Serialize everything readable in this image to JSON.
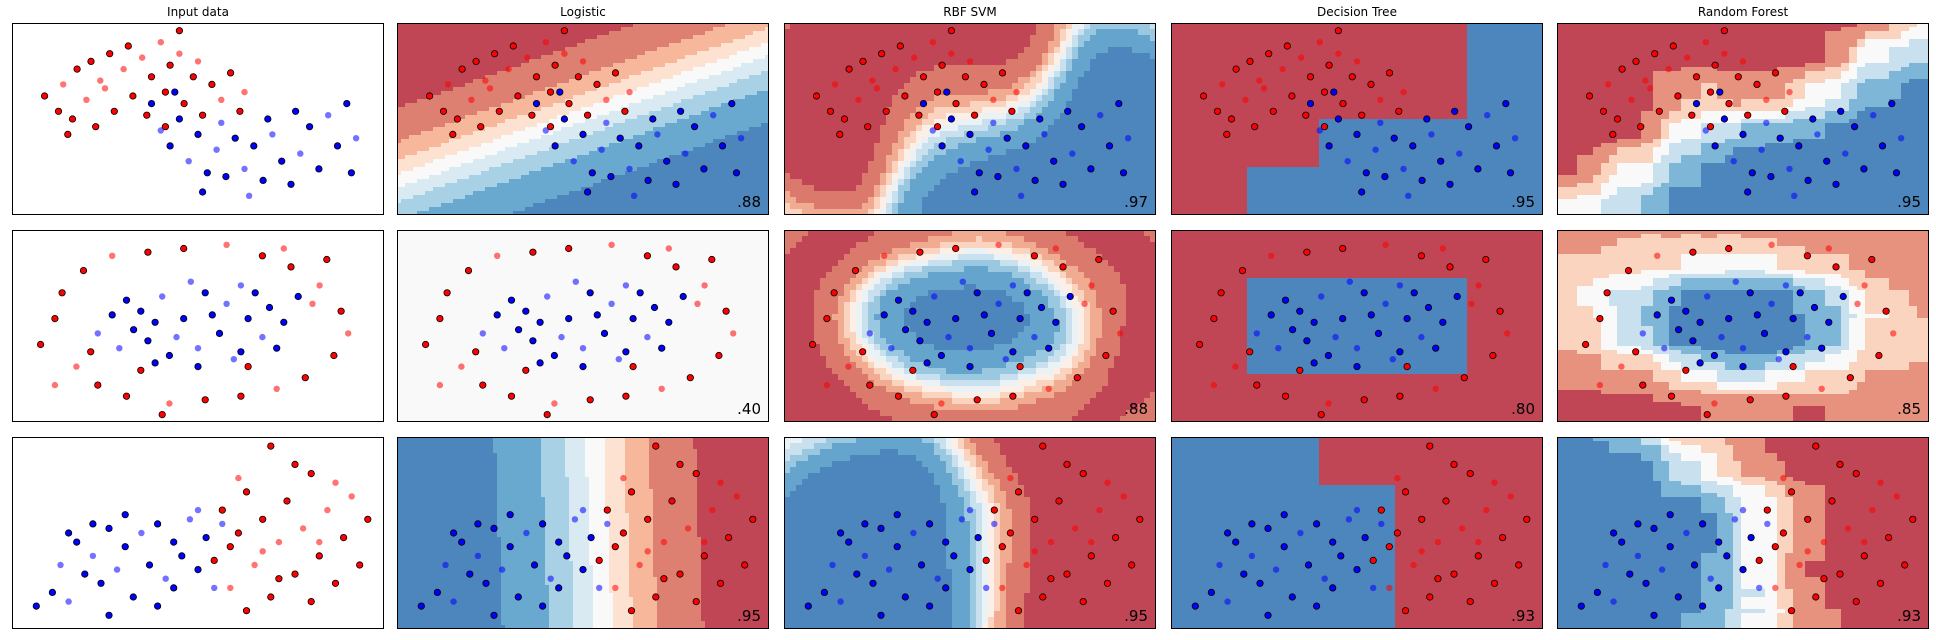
{
  "chart_data": {
    "type": "scatter",
    "columns": [
      "Input data",
      "Logistic",
      "RBF SVM",
      "Decision Tree",
      "Random Forest"
    ],
    "rows": [
      {
        "dataset": "moons",
        "xlim": [
          -1.5,
          2.5
        ],
        "ylim": [
          -1.0,
          1.5
        ],
        "scores": [
          "",
          ".88",
          ".97",
          ".95",
          ".95"
        ],
        "points": [
          [
            -1.15,
            0.55,
            0
          ],
          [
            -1.0,
            0.35,
            0
          ],
          [
            -0.95,
            0.7,
            0
          ],
          [
            -0.85,
            0.25,
            0
          ],
          [
            -0.8,
            0.9,
            0
          ],
          [
            -0.7,
            0.5,
            0
          ],
          [
            -0.65,
            1.0,
            0
          ],
          [
            -0.6,
            0.15,
            0
          ],
          [
            -0.5,
            0.65,
            0
          ],
          [
            -0.45,
            1.1,
            0
          ],
          [
            -0.4,
            0.35,
            0
          ],
          [
            -0.3,
            0.9,
            0
          ],
          [
            -0.25,
            1.2,
            0
          ],
          [
            -0.2,
            0.55,
            0
          ],
          [
            -0.1,
            1.05,
            0
          ],
          [
            -0.05,
            0.3,
            0
          ],
          [
            0.0,
            0.8,
            0
          ],
          [
            0.1,
            1.25,
            0
          ],
          [
            0.15,
            0.6,
            0
          ],
          [
            0.2,
            0.95,
            0
          ],
          [
            0.3,
            1.1,
            0
          ],
          [
            0.35,
            0.45,
            0
          ],
          [
            0.45,
            0.8,
            0
          ],
          [
            0.5,
            1.0,
            0
          ],
          [
            0.55,
            0.3,
            0
          ],
          [
            0.65,
            0.7,
            0
          ],
          [
            0.75,
            0.5,
            0
          ],
          [
            0.85,
            0.85,
            0
          ],
          [
            0.95,
            0.35,
            0
          ],
          [
            1.0,
            0.6,
            0
          ],
          [
            -0.9,
            0.05,
            0
          ],
          [
            0.3,
            1.4,
            0
          ],
          [
            -0.55,
            0.75,
            0
          ],
          [
            0.15,
            0.15,
            0
          ],
          [
            0.0,
            0.45,
            1
          ],
          [
            0.1,
            0.1,
            1
          ],
          [
            0.2,
            -0.1,
            1
          ],
          [
            0.3,
            0.25,
            1
          ],
          [
            0.4,
            -0.3,
            1
          ],
          [
            0.5,
            0.05,
            1
          ],
          [
            0.6,
            -0.45,
            1
          ],
          [
            0.7,
            -0.15,
            1
          ],
          [
            0.8,
            -0.5,
            1
          ],
          [
            0.9,
            0.0,
            1
          ],
          [
            1.0,
            -0.4,
            1
          ],
          [
            1.1,
            -0.1,
            1
          ],
          [
            1.2,
            -0.55,
            1
          ],
          [
            1.3,
            0.05,
            1
          ],
          [
            1.4,
            -0.3,
            1
          ],
          [
            1.5,
            -0.6,
            1
          ],
          [
            1.6,
            -0.2,
            1
          ],
          [
            1.7,
            0.15,
            1
          ],
          [
            1.8,
            -0.4,
            1
          ],
          [
            1.9,
            0.3,
            1
          ],
          [
            2.0,
            -0.1,
            1
          ],
          [
            2.1,
            0.45,
            1
          ],
          [
            2.2,
            0.0,
            1
          ],
          [
            0.25,
            0.6,
            1
          ],
          [
            0.55,
            -0.7,
            1
          ],
          [
            1.05,
            -0.75,
            1
          ],
          [
            1.55,
            0.35,
            1
          ],
          [
            2.15,
            -0.45,
            1
          ],
          [
            0.75,
            0.2,
            1
          ],
          [
            1.25,
            0.25,
            1
          ]
        ]
      },
      {
        "dataset": "circles",
        "xlim": [
          -1.3,
          1.3
        ],
        "ylim": [
          -1.3,
          1.3
        ],
        "scores": [
          "",
          ".40",
          ".88",
          ".80",
          ".85"
        ],
        "points": [
          [
            -1.0,
            0.1,
            0
          ],
          [
            -0.95,
            0.45,
            0
          ],
          [
            -0.85,
            -0.55,
            0
          ],
          [
            -0.8,
            0.75,
            0
          ],
          [
            -0.7,
            -0.8,
            0
          ],
          [
            -0.6,
            0.95,
            0
          ],
          [
            -0.5,
            -0.95,
            0
          ],
          [
            -0.35,
            1.0,
            0
          ],
          [
            -0.2,
            -1.05,
            0
          ],
          [
            -0.1,
            1.05,
            0
          ],
          [
            0.05,
            -1.0,
            0
          ],
          [
            0.2,
            1.1,
            0
          ],
          [
            0.3,
            -0.95,
            0
          ],
          [
            0.45,
            0.95,
            0
          ],
          [
            0.55,
            -0.85,
            0
          ],
          [
            0.65,
            0.8,
            0
          ],
          [
            0.75,
            -0.7,
            0
          ],
          [
            0.85,
            0.55,
            0
          ],
          [
            0.95,
            -0.4,
            0
          ],
          [
            1.0,
            0.2,
            0
          ],
          [
            1.05,
            -0.1,
            0
          ],
          [
            -1.1,
            -0.25,
            0
          ],
          [
            -0.75,
            -0.35,
            0
          ],
          [
            0.8,
            0.3,
            0
          ],
          [
            -0.4,
            -0.6,
            0
          ],
          [
            0.35,
            -0.55,
            0
          ],
          [
            -1.0,
            -0.8,
            0
          ],
          [
            0.9,
            0.9,
            0
          ],
          [
            -0.25,
            -1.2,
            0
          ],
          [
            0.6,
            1.05,
            0
          ],
          [
            -0.4,
            0.2,
            1
          ],
          [
            -0.35,
            -0.2,
            1
          ],
          [
            -0.25,
            0.4,
            1
          ],
          [
            -0.2,
            -0.4,
            1
          ],
          [
            -0.1,
            0.1,
            1
          ],
          [
            0.0,
            -0.3,
            1
          ],
          [
            0.05,
            0.45,
            1
          ],
          [
            0.15,
            -0.1,
            1
          ],
          [
            0.2,
            0.3,
            1
          ],
          [
            0.3,
            -0.35,
            1
          ],
          [
            0.35,
            0.1,
            1
          ],
          [
            0.45,
            -0.15,
            1
          ],
          [
            0.4,
            0.45,
            1
          ],
          [
            -0.45,
            -0.05,
            1
          ],
          [
            -0.15,
            -0.15,
            1
          ],
          [
            0.1,
            0.15,
            1
          ],
          [
            -0.3,
            0.05,
            1
          ],
          [
            0.25,
            -0.45,
            1
          ],
          [
            -0.5,
            0.35,
            1
          ],
          [
            0.5,
            0.25,
            1
          ],
          [
            -0.05,
            0.6,
            1
          ],
          [
            0.0,
            -0.55,
            1
          ],
          [
            0.55,
            -0.3,
            1
          ],
          [
            -0.55,
            -0.3,
            1
          ],
          [
            0.6,
            0.05,
            1
          ],
          [
            -0.6,
            0.15,
            1
          ],
          [
            0.3,
            0.55,
            1
          ],
          [
            -0.3,
            -0.5,
            1
          ],
          [
            0.7,
            0.4,
            1
          ],
          [
            -0.7,
            -0.1,
            1
          ]
        ]
      },
      {
        "dataset": "linear",
        "xlim": [
          -2.2,
          2.4
        ],
        "ylim": [
          -1.8,
          2.4
        ],
        "scores": [
          "",
          ".95",
          ".95",
          ".93",
          ".93"
        ],
        "points": [
          [
            -1.9,
            -1.3,
            1
          ],
          [
            -1.7,
            -1.0,
            1
          ],
          [
            -1.5,
            -1.2,
            1
          ],
          [
            -1.4,
            0.1,
            1
          ],
          [
            -1.3,
            -0.6,
            1
          ],
          [
            -1.2,
            -0.2,
            1
          ],
          [
            -1.1,
            -0.8,
            1
          ],
          [
            -1.0,
            0.4,
            1
          ],
          [
            -0.9,
            -0.5,
            1
          ],
          [
            -0.8,
            0.0,
            1
          ],
          [
            -0.7,
            -1.1,
            1
          ],
          [
            -0.6,
            0.3,
            1
          ],
          [
            -0.5,
            -0.4,
            1
          ],
          [
            -0.4,
            0.5,
            1
          ],
          [
            -0.3,
            -0.7,
            1
          ],
          [
            -0.2,
            0.1,
            1
          ],
          [
            -0.1,
            -0.2,
            1
          ],
          [
            0.0,
            0.6,
            1
          ],
          [
            0.1,
            -0.5,
            1
          ],
          [
            0.2,
            0.2,
            1
          ],
          [
            -1.6,
            -0.4,
            1
          ],
          [
            -1.0,
            -1.5,
            1
          ],
          [
            -0.4,
            -1.3,
            1
          ],
          [
            0.3,
            -0.9,
            1
          ],
          [
            -0.8,
            0.7,
            1
          ],
          [
            -1.2,
            0.5,
            1
          ],
          [
            0.4,
            0.5,
            1
          ],
          [
            -0.2,
            -0.9,
            1
          ],
          [
            -1.5,
            0.3,
            1
          ],
          [
            0.1,
            0.8,
            1
          ],
          [
            0.3,
            -0.3,
            0
          ],
          [
            0.4,
            0.8,
            0
          ],
          [
            0.5,
            -0.9,
            0
          ],
          [
            0.6,
            0.3,
            0
          ],
          [
            0.7,
            1.2,
            0
          ],
          [
            0.8,
            -0.4,
            0
          ],
          [
            0.9,
            0.6,
            0
          ],
          [
            1.0,
            -1.1,
            0
          ],
          [
            1.1,
            0.1,
            0
          ],
          [
            1.2,
            1.0,
            0
          ],
          [
            1.3,
            -0.6,
            0
          ],
          [
            1.4,
            0.4,
            0
          ],
          [
            1.5,
            1.6,
            0
          ],
          [
            1.6,
            -0.2,
            0
          ],
          [
            1.7,
            0.8,
            0
          ],
          [
            1.8,
            -0.8,
            0
          ],
          [
            1.9,
            0.2,
            0
          ],
          [
            2.0,
            1.1,
            0
          ],
          [
            2.1,
            -0.4,
            0
          ],
          [
            2.2,
            0.6,
            0
          ],
          [
            0.6,
            1.5,
            0
          ],
          [
            1.0,
            2.2,
            0
          ],
          [
            1.3,
            1.8,
            0
          ],
          [
            0.9,
            -0.1,
            0
          ],
          [
            1.5,
            -1.2,
            0
          ],
          [
            0.7,
            -1.4,
            0
          ],
          [
            1.8,
            1.4,
            0
          ],
          [
            1.1,
            -0.7,
            0
          ],
          [
            0.5,
            0.0,
            0
          ],
          [
            1.6,
            0.1,
            0
          ]
        ]
      }
    ]
  }
}
